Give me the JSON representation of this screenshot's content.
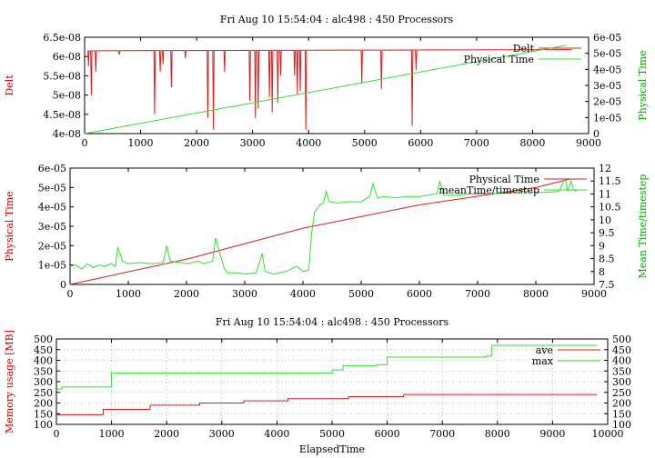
{
  "title": "Fri Aug 10 15:54:04 : alc498 : 450 Processors",
  "xlabel_bottom": "ElapsedTime",
  "colors": {
    "red": "#d42020",
    "green": "#33dd33"
  },
  "chart_data": [
    {
      "type": "line",
      "title": "Fri Aug 10 15:54:04 : alc498 : 450 Processors",
      "xlabel": "",
      "ylabel": "Delt",
      "y2label": "Physical Time",
      "xlim": [
        0,
        9000
      ],
      "ylim": [
        4e-08,
        6.5e-08
      ],
      "y2lim": [
        0,
        6e-05
      ],
      "xticks": [
        "0",
        "1000",
        "2000",
        "3000",
        "4000",
        "5000",
        "6000",
        "7000",
        "8000",
        "9000"
      ],
      "yticks": [
        "4e-08",
        "4.5e-08",
        "5e-08",
        "5.5e-08",
        "6e-08",
        "6.5e-08"
      ],
      "y2ticks": [
        "0",
        "1e-05",
        "2e-05",
        "3e-05",
        "4e-05",
        "5e-05",
        "6e-05"
      ],
      "grid": false,
      "legend": "top-right",
      "series": [
        {
          "name": "Delt",
          "axis": "y1",
          "color": "#d42020",
          "base": [
            [
              50,
              6.15e-08
            ],
            [
              8700,
              6.18e-08
            ]
          ],
          "dips": [
            [
              70,
              5.75e-08
            ],
            [
              120,
              5e-08
            ],
            [
              200,
              5.6e-08
            ],
            [
              620,
              6.05e-08
            ],
            [
              1250,
              4.5e-08
            ],
            [
              1350,
              5.6e-08
            ],
            [
              1400,
              5.8e-08
            ],
            [
              1550,
              5.2e-08
            ],
            [
              1800,
              5.95e-08
            ],
            [
              2200,
              4.4e-08
            ],
            [
              2300,
              4.1e-08
            ],
            [
              2500,
              5.6e-08
            ],
            [
              2950,
              4.85e-08
            ],
            [
              3050,
              4.4e-08
            ],
            [
              3100,
              4.65e-08
            ],
            [
              3300,
              4.95e-08
            ],
            [
              3350,
              4.55e-08
            ],
            [
              3450,
              4.8e-08
            ],
            [
              3500,
              5.5e-08
            ],
            [
              3750,
              5.5e-08
            ],
            [
              3800,
              5e-08
            ],
            [
              3850,
              5.1e-08
            ],
            [
              3950,
              4.1e-08
            ],
            [
              4950,
              5.3e-08
            ],
            [
              5300,
              5.15e-08
            ],
            [
              5850,
              4.2e-08
            ],
            [
              5920,
              5.65e-08
            ]
          ]
        },
        {
          "name": "Physical Time",
          "axis": "y2",
          "color": "#33dd33",
          "points": [
            [
              0,
              0
            ],
            [
              8600,
              5.5e-05
            ]
          ]
        }
      ]
    },
    {
      "type": "line",
      "title": "",
      "xlabel": "",
      "ylabel": "Physical Time",
      "y2label": "Mean Time/timestep",
      "xlim": [
        0,
        9000
      ],
      "ylim": [
        0,
        6e-05
      ],
      "y2lim": [
        7.5,
        12
      ],
      "xticks": [
        "0",
        "1000",
        "2000",
        "3000",
        "4000",
        "5000",
        "6000",
        "7000",
        "8000",
        "9000"
      ],
      "yticks": [
        "0",
        "1e-05",
        "2e-05",
        "3e-05",
        "4e-05",
        "5e-05",
        "6e-05"
      ],
      "y2ticks": [
        "7.5",
        "8",
        "8.5",
        "9",
        "9.5",
        "10",
        "10.5",
        "11",
        "11.5",
        "12"
      ],
      "grid": false,
      "legend": "top-right",
      "series": [
        {
          "name": "Physical Time",
          "axis": "y1",
          "color": "#d42020",
          "points": [
            [
              0,
              0
            ],
            [
              2000,
              1.3e-05
            ],
            [
              4000,
              2.9e-05
            ],
            [
              6000,
              4.1e-05
            ],
            [
              8000,
              5e-05
            ],
            [
              8600,
              5.45e-05
            ]
          ]
        },
        {
          "name": "meanTime/timestep",
          "axis": "y2",
          "color": "#33dd33",
          "points": [
            [
              0,
              8.2
            ],
            [
              100,
              8.25
            ],
            [
              200,
              8.1
            ],
            [
              300,
              8.3
            ],
            [
              400,
              8.15
            ],
            [
              500,
              8.25
            ],
            [
              600,
              8.2
            ],
            [
              700,
              8.3
            ],
            [
              780,
              8.2
            ],
            [
              820,
              8.95
            ],
            [
              900,
              8.4
            ],
            [
              1000,
              8.3
            ],
            [
              1200,
              8.35
            ],
            [
              1400,
              8.3
            ],
            [
              1600,
              8.35
            ],
            [
              1660,
              9.0
            ],
            [
              1720,
              8.4
            ],
            [
              1900,
              8.35
            ],
            [
              2000,
              8.3
            ],
            [
              2200,
              8.4
            ],
            [
              2300,
              8.3
            ],
            [
              2450,
              8.4
            ],
            [
              2500,
              9.3
            ],
            [
              2550,
              8.9
            ],
            [
              2650,
              8.1
            ],
            [
              2700,
              7.95
            ],
            [
              2900,
              7.95
            ],
            [
              3000,
              7.9
            ],
            [
              3200,
              7.95
            ],
            [
              3300,
              8.7
            ],
            [
              3350,
              8.0
            ],
            [
              3500,
              7.9
            ],
            [
              3700,
              8.0
            ],
            [
              3900,
              8.2
            ],
            [
              4000,
              8.0
            ],
            [
              4100,
              8.05
            ],
            [
              4150,
              9.5
            ],
            [
              4200,
              10.3
            ],
            [
              4300,
              10.6
            ],
            [
              4350,
              10.65
            ],
            [
              4400,
              11.1
            ],
            [
              4450,
              10.7
            ],
            [
              4600,
              10.65
            ],
            [
              4800,
              10.7
            ],
            [
              5000,
              10.7
            ],
            [
              5150,
              10.9
            ],
            [
              5200,
              11.4
            ],
            [
              5280,
              10.85
            ],
            [
              5400,
              10.9
            ],
            [
              5600,
              10.85
            ],
            [
              5800,
              10.9
            ],
            [
              6000,
              10.9
            ],
            [
              6300,
              11.0
            ],
            [
              6350,
              11.5
            ],
            [
              6420,
              10.95
            ],
            [
              6600,
              10.95
            ],
            [
              6900,
              11.0
            ],
            [
              7200,
              11.0
            ],
            [
              7500,
              11.05
            ],
            [
              7800,
              11.1
            ],
            [
              8100,
              11.05
            ],
            [
              8400,
              11.1
            ],
            [
              8500,
              11.6
            ],
            [
              8550,
              11.1
            ],
            [
              8600,
              11.5
            ],
            [
              8650,
              11.15
            ],
            [
              8700,
              11.1
            ]
          ]
        }
      ]
    },
    {
      "type": "line",
      "title": "Fri Aug 10 15:54:04 : alc498 : 450 Processors",
      "xlabel": "ElapsedTime",
      "ylabel": "Memory usage [MB]",
      "xlim": [
        0,
        10000
      ],
      "ylim": [
        100,
        500
      ],
      "xticks": [
        "0",
        "1000",
        "2000",
        "3000",
        "4000",
        "5000",
        "6000",
        "7000",
        "8000",
        "9000",
        "10000"
      ],
      "yticks": [
        "100",
        "150",
        "200",
        "250",
        "300",
        "350",
        "400",
        "450",
        "500"
      ],
      "y2ticks": [
        "100",
        "150",
        "200",
        "250",
        "300",
        "350",
        "400",
        "450",
        "500"
      ],
      "grid": true,
      "legend": "top-right",
      "series": [
        {
          "name": "ave",
          "color": "#d42020",
          "step": true,
          "points": [
            [
              0,
              145
            ],
            [
              850,
              170
            ],
            [
              1700,
              190
            ],
            [
              2600,
              200
            ],
            [
              3400,
              210
            ],
            [
              4200,
              220
            ],
            [
              5300,
              230
            ],
            [
              6300,
              240
            ],
            [
              9800,
              242
            ]
          ]
        },
        {
          "name": "max",
          "color": "#33dd33",
          "step": true,
          "points": [
            [
              0,
              265
            ],
            [
              100,
              275
            ],
            [
              1000,
              340
            ],
            [
              4900,
              340
            ],
            [
              5000,
              355
            ],
            [
              5200,
              375
            ],
            [
              5800,
              380
            ],
            [
              6000,
              415
            ],
            [
              7800,
              420
            ],
            [
              7900,
              470
            ],
            [
              9800,
              472
            ]
          ]
        }
      ]
    }
  ]
}
